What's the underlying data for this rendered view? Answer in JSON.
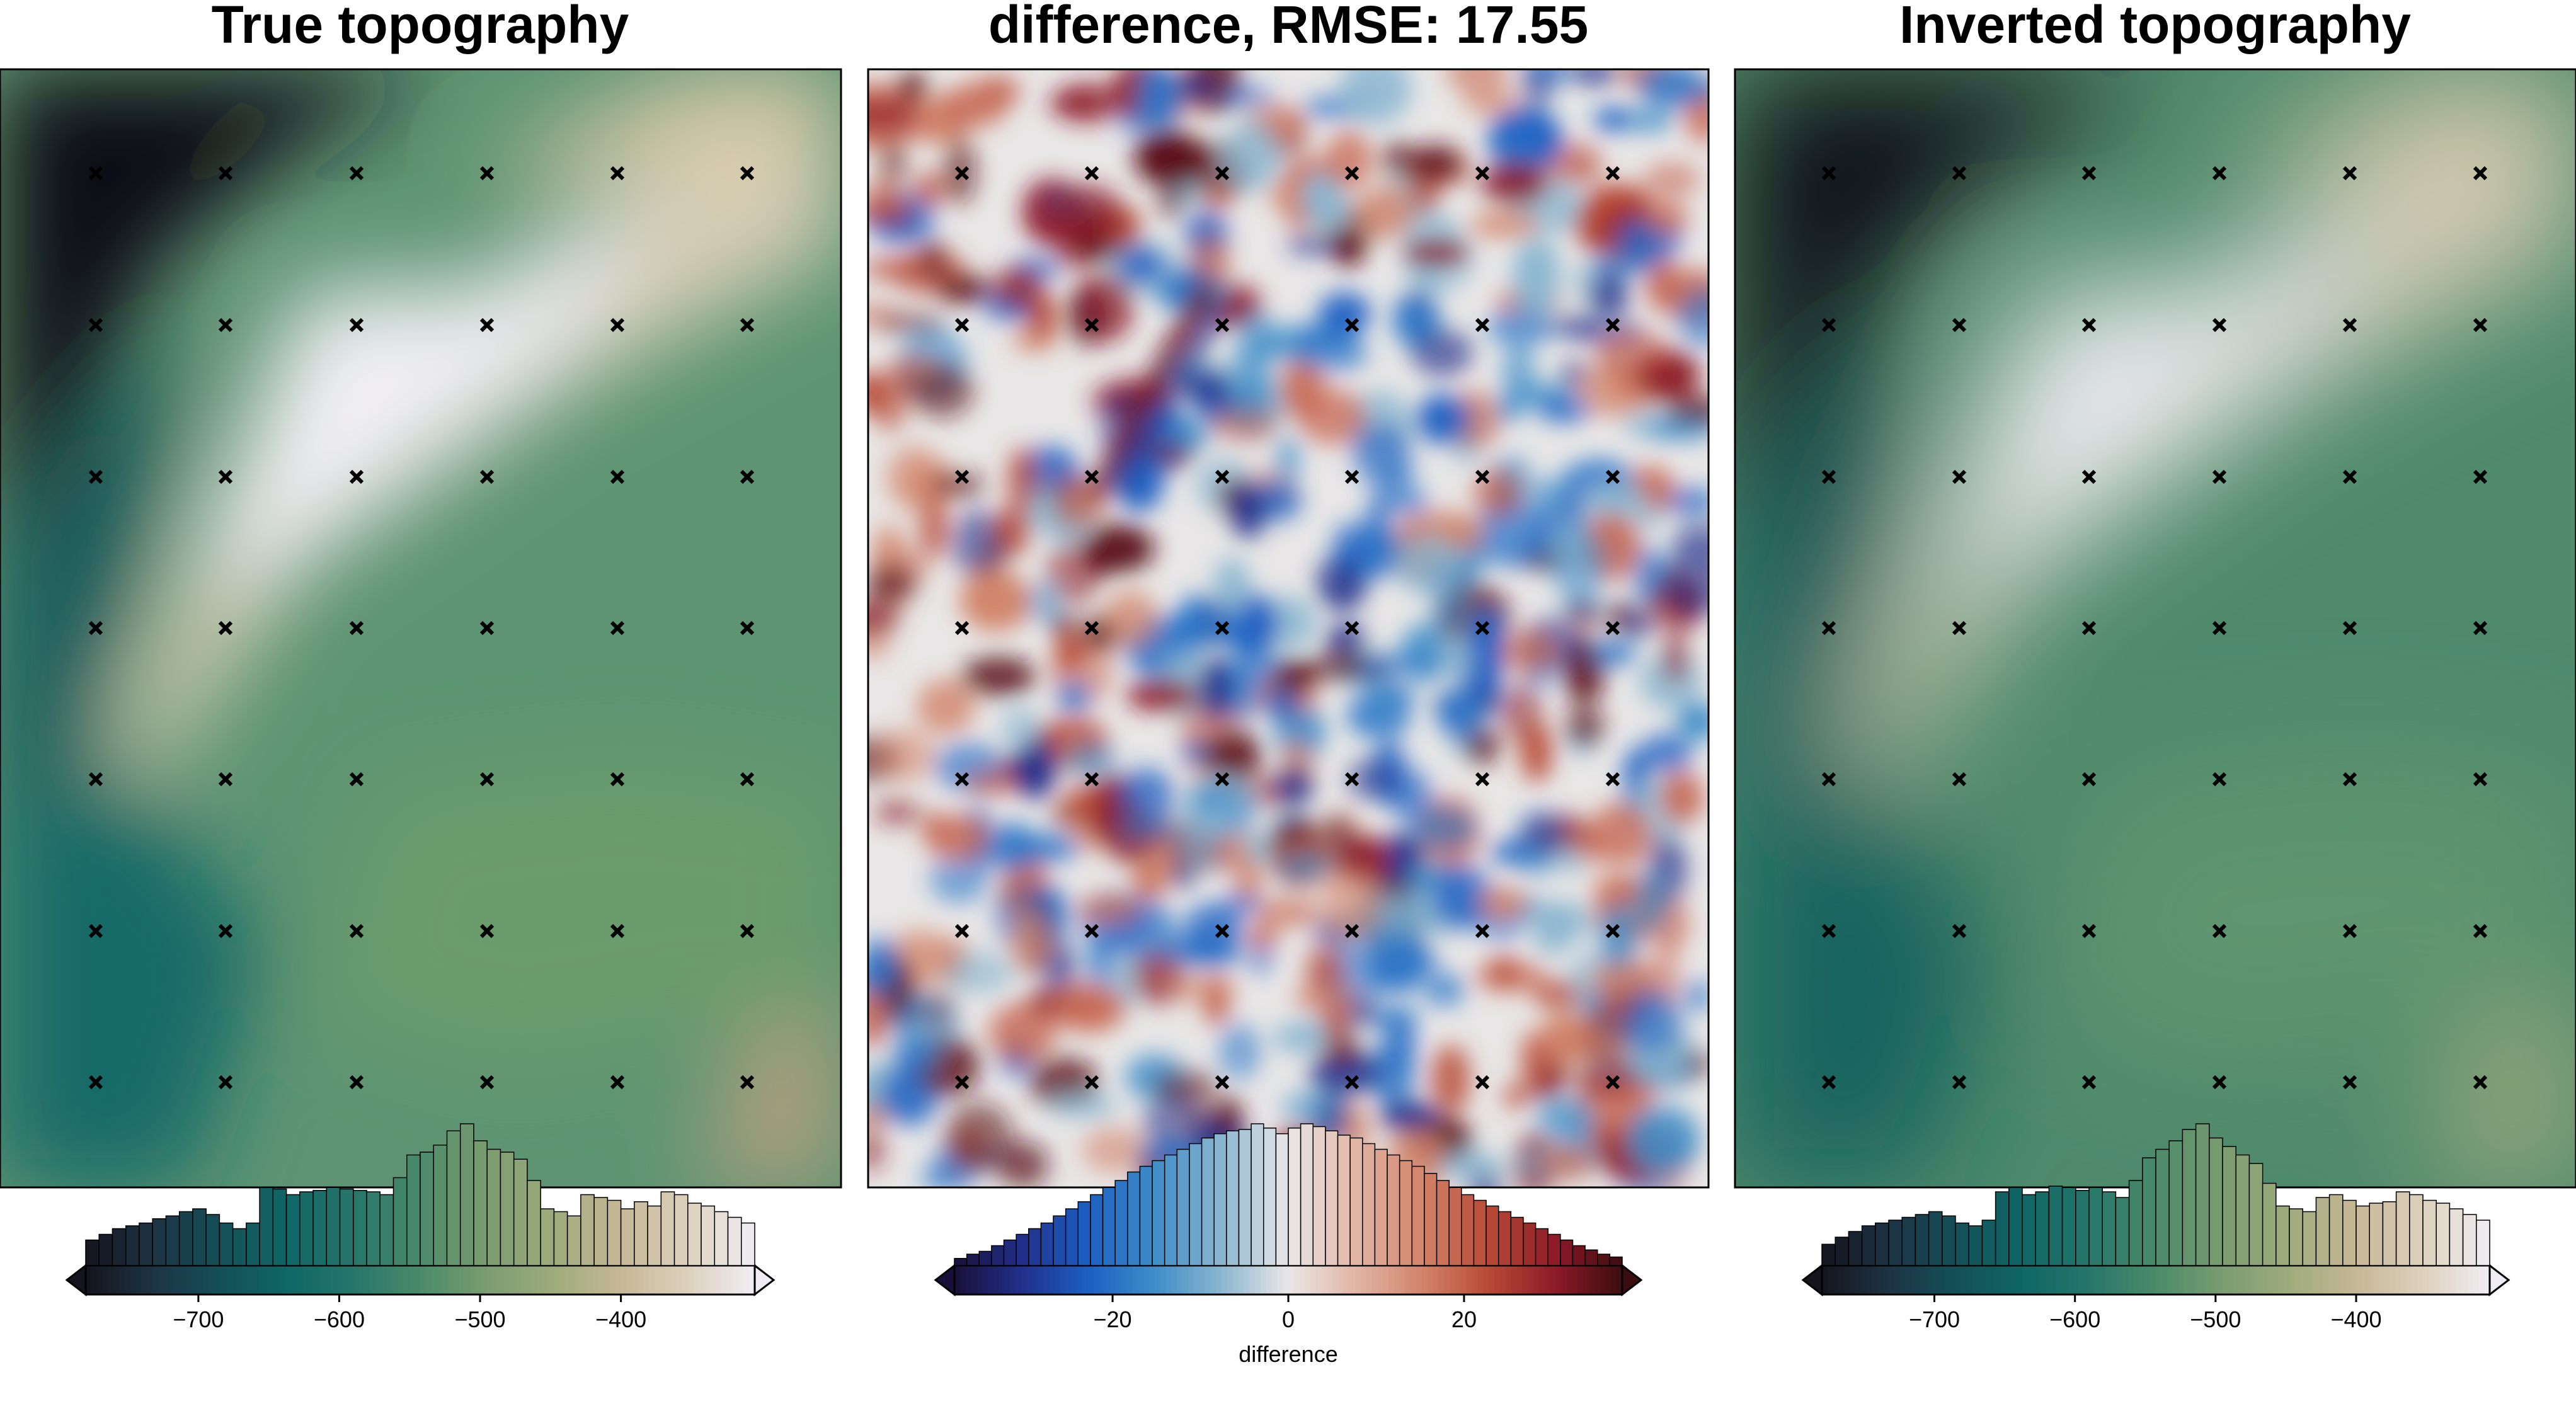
{
  "chart_data": [
    {
      "type": "heatmap",
      "title": "True topography",
      "colormap": "fes",
      "colors": {
        "scale": [
          "#15141d",
          "#1d3343",
          "#144f57",
          "#0f6665",
          "#26766a",
          "#4b8a6a",
          "#7a9d70",
          "#9fab7c",
          "#c6b795",
          "#ddd1bd",
          "#f0eef4"
        ]
      },
      "value_range": [
        -780,
        -305
      ],
      "colorbar": {
        "ticks": [
          -700,
          -600,
          -500,
          -400
        ],
        "tick_labels": [
          "−700",
          "−600",
          "−500",
          "−400"
        ],
        "label": "",
        "range": [
          -780,
          -305
        ],
        "extend": "both",
        "histogram": [
          0.18,
          0.22,
          0.26,
          0.28,
          0.3,
          0.33,
          0.35,
          0.38,
          0.4,
          0.36,
          0.3,
          0.26,
          0.3,
          0.55,
          0.54,
          0.5,
          0.52,
          0.53,
          0.55,
          0.54,
          0.53,
          0.52,
          0.5,
          0.62,
          0.78,
          0.8,
          0.85,
          0.95,
          1.0,
          0.88,
          0.82,
          0.8,
          0.75,
          0.6,
          0.4,
          0.38,
          0.35,
          0.5,
          0.48,
          0.46,
          0.4,
          0.45,
          0.42,
          0.52,
          0.5,
          0.44,
          0.42,
          0.38,
          0.34,
          0.3
        ]
      }
    },
    {
      "type": "heatmap",
      "title": "difference, RMSE: 17.55",
      "colormap": "balance",
      "colors": {
        "scale": [
          "#19103a",
          "#222f8a",
          "#1c5fc2",
          "#3f8dc8",
          "#8bb6d0",
          "#e9e7e7",
          "#e2b6a6",
          "#d2846a",
          "#b84a36",
          "#8c1a28",
          "#3c0d10"
        ]
      },
      "value_range": [
        -38,
        38
      ],
      "colorbar": {
        "ticks": [
          -20,
          0,
          20
        ],
        "tick_labels": [
          "−20",
          "0",
          "20"
        ],
        "label": "difference",
        "range": [
          -38,
          38
        ],
        "extend": "both",
        "histogram": [
          0.05,
          0.08,
          0.1,
          0.14,
          0.18,
          0.22,
          0.26,
          0.3,
          0.35,
          0.4,
          0.45,
          0.5,
          0.55,
          0.6,
          0.66,
          0.7,
          0.74,
          0.78,
          0.82,
          0.86,
          0.9,
          0.93,
          0.95,
          0.96,
          1.0,
          0.97,
          0.93,
          0.97,
          1.0,
          0.98,
          0.95,
          0.92,
          0.9,
          0.86,
          0.82,
          0.78,
          0.74,
          0.7,
          0.65,
          0.6,
          0.55,
          0.5,
          0.46,
          0.42,
          0.38,
          0.34,
          0.3,
          0.26,
          0.22,
          0.18,
          0.14,
          0.11,
          0.08,
          0.06
        ]
      }
    },
    {
      "type": "heatmap",
      "title": "Inverted topography",
      "colormap": "fes",
      "colors": {
        "scale": [
          "#15141d",
          "#1d3343",
          "#144f57",
          "#0f6665",
          "#26766a",
          "#4b8a6a",
          "#7a9d70",
          "#9fab7c",
          "#c6b795",
          "#ddd1bd",
          "#f0eef4"
        ]
      },
      "value_range": [
        -780,
        -305
      ],
      "colorbar": {
        "ticks": [
          -700,
          -600,
          -500,
          -400
        ],
        "tick_labels": [
          "−700",
          "−600",
          "−500",
          "−400"
        ],
        "label": "",
        "range": [
          -780,
          -305
        ],
        "extend": "both",
        "histogram": [
          0.15,
          0.2,
          0.24,
          0.28,
          0.3,
          0.32,
          0.34,
          0.36,
          0.38,
          0.35,
          0.3,
          0.28,
          0.32,
          0.52,
          0.55,
          0.5,
          0.52,
          0.56,
          0.55,
          0.53,
          0.55,
          0.52,
          0.48,
          0.6,
          0.76,
          0.82,
          0.88,
          0.96,
          1.0,
          0.9,
          0.84,
          0.78,
          0.72,
          0.58,
          0.42,
          0.4,
          0.38,
          0.48,
          0.5,
          0.46,
          0.42,
          0.44,
          0.45,
          0.52,
          0.5,
          0.46,
          0.44,
          0.4,
          0.36,
          0.32
        ]
      }
    }
  ]
}
